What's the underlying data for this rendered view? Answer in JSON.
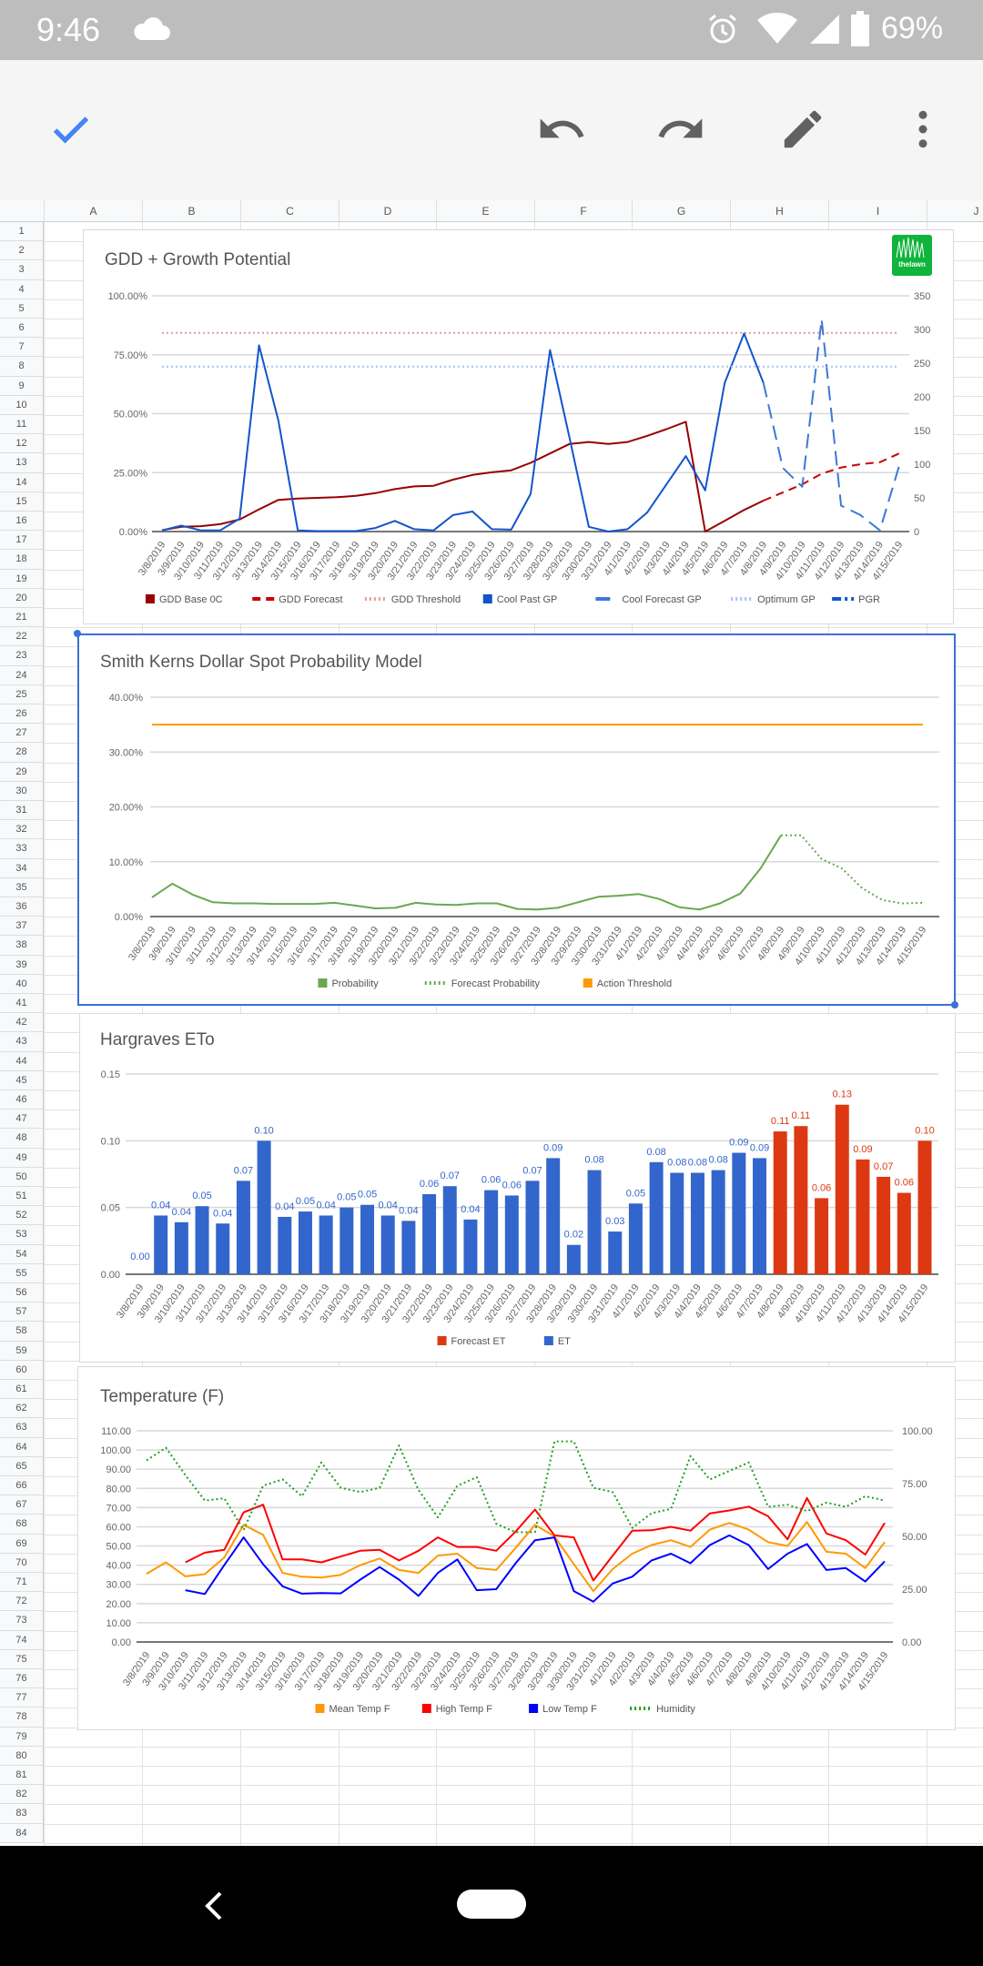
{
  "status_bar": {
    "time": "9:46",
    "battery": "69%"
  },
  "toolbar": {
    "icons": [
      "check-icon",
      "undo-icon",
      "redo-icon",
      "pencil-icon",
      "more-vert-icon"
    ]
  },
  "sheet": {
    "columns": [
      "A",
      "B",
      "C",
      "D",
      "E",
      "F",
      "G",
      "H",
      "I",
      "J"
    ],
    "row_count": 84
  },
  "dates": [
    "3/8/2019",
    "3/9/2019",
    "3/10/2019",
    "3/11/2019",
    "3/12/2019",
    "3/13/2019",
    "3/14/2019",
    "3/15/2019",
    "3/16/2019",
    "3/17/2019",
    "3/18/2019",
    "3/19/2019",
    "3/20/2019",
    "3/21/2019",
    "3/22/2019",
    "3/23/2019",
    "3/24/2019",
    "3/25/2019",
    "3/26/2019",
    "3/27/2019",
    "3/28/2019",
    "3/29/2019",
    "3/30/2019",
    "3/31/2019",
    "4/1/2019",
    "4/2/2019",
    "4/3/2019",
    "4/4/2019",
    "4/5/2019",
    "4/6/2019",
    "4/7/2019",
    "4/8/2019",
    "4/9/2019",
    "4/10/2019",
    "4/11/2019",
    "4/12/2019",
    "4/13/2019",
    "4/14/2019",
    "4/15/2019"
  ],
  "chart_data": [
    {
      "id": "gdd",
      "type": "line",
      "title": "GDD + Growth Potential",
      "logo_text": "thelawn forum.com",
      "left_axis": {
        "min": 0,
        "max": 100,
        "step": 25,
        "format": "pct"
      },
      "right_axis": {
        "min": 0,
        "max": 350,
        "step": 50,
        "format": "int"
      },
      "legend_position": "bottom",
      "series": [
        {
          "name": "GDD Base 0C",
          "axis": "right",
          "color": "#990000",
          "style": "solid",
          "values": [
            2,
            7,
            8,
            11,
            18,
            33,
            47,
            49,
            50,
            51,
            53,
            57,
            63,
            67,
            68,
            77,
            84,
            88,
            91,
            102,
            116,
            130,
            133,
            130,
            133,
            142,
            152,
            163,
            0,
            16,
            32,
            46,
            null,
            null,
            null,
            null,
            null,
            null,
            null
          ]
        },
        {
          "name": "GDD Forecast",
          "axis": "right",
          "color": "#cc0000",
          "style": "dashed",
          "values": [
            null,
            null,
            null,
            null,
            null,
            null,
            null,
            null,
            null,
            null,
            null,
            null,
            null,
            null,
            null,
            null,
            null,
            null,
            null,
            null,
            null,
            null,
            null,
            null,
            null,
            null,
            null,
            null,
            null,
            null,
            null,
            46,
            58,
            70,
            86,
            95,
            100,
            103,
            116
          ]
        },
        {
          "name": "GDD Threshold",
          "axis": "right",
          "color": "#e69999",
          "style": "dotted",
          "values": [
            295,
            295,
            295,
            295,
            295,
            295,
            295,
            295,
            295,
            295,
            295,
            295,
            295,
            295,
            295,
            295,
            295,
            295,
            295,
            295,
            295,
            295,
            295,
            295,
            295,
            295,
            295,
            295,
            295,
            295,
            295,
            295,
            295,
            295,
            295,
            295,
            295,
            295,
            295
          ]
        },
        {
          "name": "Cool Past GP",
          "axis": "left",
          "color": "#1155cc",
          "style": "solid",
          "values": [
            0.5,
            2.5,
            0.5,
            0.5,
            5.5,
            79,
            47,
            0.5,
            0.2,
            0.2,
            0.2,
            1.5,
            4.5,
            1,
            0.5,
            7,
            8.5,
            1,
            0.8,
            16,
            77,
            40,
            2,
            0,
            1,
            8,
            20,
            32,
            17.5,
            63,
            84,
            63,
            null,
            null,
            null,
            null,
            null,
            null,
            null
          ]
        },
        {
          "name": "Cool Forecast GP",
          "axis": "left",
          "color": "#3c78d8",
          "style": "longdash",
          "values": [
            null,
            null,
            null,
            null,
            null,
            null,
            null,
            null,
            null,
            null,
            null,
            null,
            null,
            null,
            null,
            null,
            null,
            null,
            null,
            null,
            null,
            null,
            null,
            null,
            null,
            null,
            null,
            null,
            null,
            null,
            null,
            63,
            27,
            19,
            90,
            11,
            7,
            0.5,
            28
          ]
        },
        {
          "name": "Optimum GP",
          "axis": "left",
          "color": "#a4c2f4",
          "style": "dotted",
          "values": [
            70,
            70,
            70,
            70,
            70,
            70,
            70,
            70,
            70,
            70,
            70,
            70,
            70,
            70,
            70,
            70,
            70,
            70,
            70,
            70,
            70,
            70,
            70,
            70,
            70,
            70,
            70,
            70,
            70,
            70,
            70,
            70,
            70,
            70,
            70,
            70,
            70,
            70,
            70
          ]
        },
        {
          "name": "PGR",
          "axis": "left",
          "color": "#1155cc",
          "style": "dashdot",
          "values": []
        }
      ]
    },
    {
      "id": "dollar",
      "type": "line",
      "title": "Smith Kerns Dollar Spot Probability Model",
      "left_axis": {
        "min": 0,
        "max": 40,
        "step": 10,
        "format": "pct"
      },
      "legend_position": "bottom",
      "series": [
        {
          "name": "Probability",
          "axis": "left",
          "color": "#6aa84f",
          "style": "solid",
          "values": [
            3.5,
            6,
            4,
            2.6,
            2.4,
            2.4,
            2.3,
            2.3,
            2.3,
            2.5,
            2,
            1.5,
            1.6,
            2.5,
            2.2,
            2.1,
            2.4,
            2.4,
            1.4,
            1.3,
            1.6,
            2.6,
            3.6,
            3.8,
            4.1,
            3.2,
            1.7,
            1.3,
            2.4,
            4.2,
            8.8,
            14.8,
            null,
            null,
            null,
            null,
            null,
            null,
            null
          ]
        },
        {
          "name": "Forecast Probability",
          "axis": "left",
          "color": "#6aa84f",
          "style": "dotted",
          "values": [
            null,
            null,
            null,
            null,
            null,
            null,
            null,
            null,
            null,
            null,
            null,
            null,
            null,
            null,
            null,
            null,
            null,
            null,
            null,
            null,
            null,
            null,
            null,
            null,
            null,
            null,
            null,
            null,
            null,
            null,
            null,
            14.8,
            14.8,
            10.5,
            8.8,
            5.2,
            3.0,
            2.4,
            2.5
          ]
        },
        {
          "name": "Action Threshold",
          "axis": "left",
          "color": "#ff9900",
          "style": "solid",
          "values": [
            35,
            35,
            35,
            35,
            35,
            35,
            35,
            35,
            35,
            35,
            35,
            35,
            35,
            35,
            35,
            35,
            35,
            35,
            35,
            35,
            35,
            35,
            35,
            35,
            35,
            35,
            35,
            35,
            35,
            35,
            35,
            35,
            35,
            35,
            35,
            35,
            35,
            35,
            35
          ]
        }
      ]
    },
    {
      "id": "et",
      "type": "bar",
      "title": "Hargraves ETo",
      "left_axis": {
        "min": 0,
        "max": 0.15,
        "step": 0.05,
        "format": "dec2"
      },
      "legend_position": "bottom",
      "data_labels": true,
      "series": [
        {
          "name": "Forecast ET",
          "axis": "left",
          "color": "#dc3912",
          "style": "bar",
          "values": [
            null,
            null,
            null,
            null,
            null,
            null,
            null,
            null,
            null,
            null,
            null,
            null,
            null,
            null,
            null,
            null,
            null,
            null,
            null,
            null,
            null,
            null,
            null,
            null,
            null,
            null,
            null,
            null,
            null,
            null,
            null,
            0.107,
            0.111,
            0.057,
            0.127,
            0.086,
            0.073,
            0.061,
            0.1
          ]
        },
        {
          "name": "ET",
          "axis": "left",
          "color": "#3366cc",
          "style": "bar",
          "values": [
            0.0,
            0.044,
            0.039,
            0.051,
            0.038,
            0.07,
            0.1,
            0.043,
            0.047,
            0.044,
            0.05,
            0.052,
            0.044,
            0.04,
            0.06,
            0.066,
            0.041,
            0.063,
            0.059,
            0.07,
            0.087,
            0.022,
            0.078,
            0.032,
            0.053,
            0.084,
            0.076,
            0.076,
            0.078,
            0.091,
            0.087,
            null,
            null,
            null,
            null,
            null,
            null,
            null,
            null
          ]
        }
      ]
    },
    {
      "id": "temp",
      "type": "line",
      "title": "Temperature (F)",
      "left_axis": {
        "min": 0,
        "max": 110,
        "step": 10,
        "format": "dec2"
      },
      "right_axis": {
        "min": 0,
        "max": 100,
        "step": 25,
        "format": "dec2"
      },
      "legend_position": "bottom",
      "series": [
        {
          "name": "Mean Temp F",
          "axis": "left",
          "color": "#ff9900",
          "style": "solid",
          "values": [
            35.5,
            41.5,
            34.2,
            35.3,
            44,
            61,
            55.8,
            36,
            34,
            33.5,
            35,
            40,
            43.5,
            37.5,
            36,
            45,
            46,
            38.5,
            37.5,
            49,
            61,
            55,
            40.5,
            26.5,
            38,
            46,
            50.5,
            53,
            49.5,
            58.5,
            62,
            58.5,
            52,
            50,
            62.5,
            47,
            46,
            38.5,
            52
          ]
        },
        {
          "name": "High Temp F",
          "axis": "left",
          "color": "#ff0000",
          "style": "solid",
          "values": [
            null,
            null,
            41.5,
            46.5,
            48,
            67.5,
            71.5,
            43,
            43,
            41.5,
            44.5,
            47.5,
            48,
            42.5,
            47.5,
            54.5,
            49.5,
            49.5,
            47.5,
            57.5,
            69,
            55.5,
            54.5,
            32,
            45,
            58,
            58.2,
            60,
            58,
            67,
            68.5,
            70.5,
            65.5,
            53.5,
            75,
            56.5,
            53,
            45.5,
            62
          ]
        },
        {
          "name": "Low Temp F",
          "axis": "left",
          "color": "#0000ff",
          "style": "solid",
          "values": [
            null,
            null,
            27,
            25,
            40,
            54.5,
            40.5,
            29,
            25.2,
            25.5,
            25.3,
            32.5,
            39,
            32.5,
            24,
            36,
            43,
            27,
            27.5,
            41,
            53,
            54.5,
            26.5,
            21,
            30.5,
            34,
            42.5,
            46,
            41,
            50.5,
            55.5,
            50.5,
            38,
            46,
            51,
            37.5,
            38.5,
            31.5,
            42
          ]
        },
        {
          "name": "Humidity",
          "axis": "right",
          "color": "#1e9e1e",
          "style": "dotted",
          "values": [
            86,
            92,
            79,
            67,
            68,
            53,
            74,
            77,
            69,
            85,
            73,
            71,
            73,
            93,
            72,
            59,
            74,
            78,
            56,
            52,
            52,
            95,
            95,
            73,
            71,
            54,
            61,
            63,
            88,
            77,
            81,
            85,
            64,
            65,
            62,
            66,
            64,
            69,
            67
          ]
        }
      ]
    }
  ]
}
